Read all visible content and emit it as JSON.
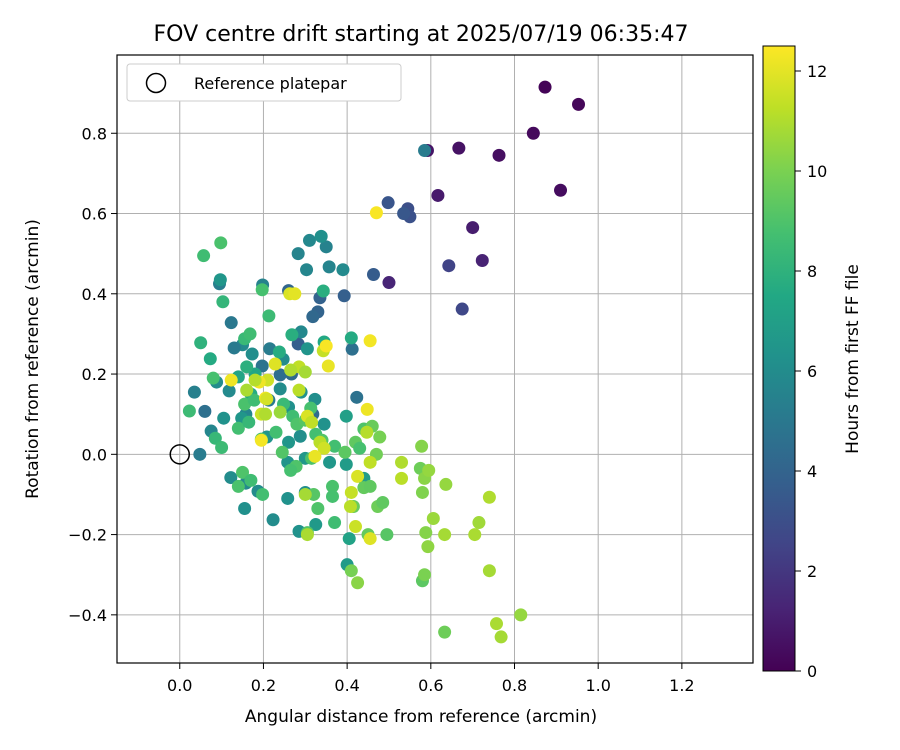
{
  "chart_data": {
    "type": "scatter",
    "title": "FOV centre drift starting at 2025/07/19 06:35:47",
    "xlabel": "Angular distance from reference (arcmin)",
    "ylabel": "Rotation from reference (arcmin)",
    "xlim": [
      -0.15,
      1.37
    ],
    "ylim": [
      -0.52,
      0.995
    ],
    "xticks": [
      "0.0",
      "0.2",
      "0.4",
      "0.6",
      "0.8",
      "1.0",
      "1.2"
    ],
    "xtick_values": [
      0.0,
      0.2,
      0.4,
      0.6,
      0.8,
      1.0,
      1.2
    ],
    "yticks": [
      "−0.4",
      "−0.2",
      "0.0",
      "0.2",
      "0.4",
      "0.6",
      "0.8"
    ],
    "ytick_values": [
      -0.4,
      -0.2,
      0.0,
      0.2,
      0.4,
      0.6,
      0.8
    ],
    "grid": true,
    "legend": {
      "position": "top-left",
      "label": "Reference platepar"
    },
    "reference_point": {
      "x": 0.0,
      "y": 0.0
    },
    "colorbar": {
      "label": "Hours from first FF file",
      "range": [
        0,
        12.5
      ],
      "ticks": [
        "0",
        "2",
        "4",
        "6",
        "8",
        "10",
        "12"
      ],
      "tick_values": [
        0,
        2,
        4,
        6,
        8,
        10,
        12
      ],
      "colormap": "viridis"
    },
    "points": [
      {
        "x": 0.873,
        "y": 0.915,
        "h": 0.1
      },
      {
        "x": 0.953,
        "y": 0.872,
        "h": 0.2
      },
      {
        "x": 0.845,
        "y": 0.8,
        "h": 0.3
      },
      {
        "x": 0.91,
        "y": 0.658,
        "h": 0.4
      },
      {
        "x": 0.763,
        "y": 0.745,
        "h": 0.5
      },
      {
        "x": 0.667,
        "y": 0.763,
        "h": 0.6
      },
      {
        "x": 0.592,
        "y": 0.757,
        "h": 0.7
      },
      {
        "x": 0.617,
        "y": 0.645,
        "h": 0.9
      },
      {
        "x": 0.7,
        "y": 0.565,
        "h": 1.0
      },
      {
        "x": 0.723,
        "y": 0.483,
        "h": 1.2
      },
      {
        "x": 0.5,
        "y": 0.428,
        "h": 1.3
      },
      {
        "x": 0.643,
        "y": 0.47,
        "h": 2.5
      },
      {
        "x": 0.675,
        "y": 0.362,
        "h": 2.7
      },
      {
        "x": 0.545,
        "y": 0.612,
        "h": 3.0
      },
      {
        "x": 0.55,
        "y": 0.592,
        "h": 3.1
      },
      {
        "x": 0.498,
        "y": 0.627,
        "h": 3.3
      },
      {
        "x": 0.535,
        "y": 0.6,
        "h": 3.4
      },
      {
        "x": 0.463,
        "y": 0.448,
        "h": 3.6
      },
      {
        "x": 0.393,
        "y": 0.395,
        "h": 3.8
      },
      {
        "x": 0.335,
        "y": 0.39,
        "h": 3.9
      },
      {
        "x": 0.33,
        "y": 0.355,
        "h": 4.0
      },
      {
        "x": 0.585,
        "y": 0.757,
        "h": 5.2
      },
      {
        "x": 0.26,
        "y": 0.408,
        "h": 4.1
      },
      {
        "x": 0.283,
        "y": 0.275,
        "h": 3.7
      },
      {
        "x": 0.318,
        "y": 0.343,
        "h": 4.2
      },
      {
        "x": 0.267,
        "y": 0.2,
        "h": 4.3
      },
      {
        "x": 0.24,
        "y": 0.198,
        "h": 4.5
      },
      {
        "x": 0.318,
        "y": 0.1,
        "h": 4.4
      },
      {
        "x": 0.412,
        "y": 0.262,
        "h": 4.6
      },
      {
        "x": 0.423,
        "y": 0.142,
        "h": 4.7
      },
      {
        "x": 0.197,
        "y": 0.22,
        "h": 4.8
      },
      {
        "x": 0.06,
        "y": 0.107,
        "h": 4.6
      },
      {
        "x": 0.048,
        "y": 0.0,
        "h": 5.2
      },
      {
        "x": 0.035,
        "y": 0.155,
        "h": 5.4
      },
      {
        "x": 0.123,
        "y": 0.328,
        "h": 5.0
      },
      {
        "x": 0.095,
        "y": 0.425,
        "h": 5.3
      },
      {
        "x": 0.198,
        "y": 0.422,
        "h": 5.5
      },
      {
        "x": 0.283,
        "y": 0.5,
        "h": 5.6
      },
      {
        "x": 0.31,
        "y": 0.533,
        "h": 5.8
      },
      {
        "x": 0.35,
        "y": 0.517,
        "h": 5.5
      },
      {
        "x": 0.338,
        "y": 0.543,
        "h": 6.2
      },
      {
        "x": 0.303,
        "y": 0.46,
        "h": 5.7
      },
      {
        "x": 0.357,
        "y": 0.467,
        "h": 5.6
      },
      {
        "x": 0.39,
        "y": 0.46,
        "h": 5.9
      },
      {
        "x": 0.097,
        "y": 0.435,
        "h": 6.5
      },
      {
        "x": 0.15,
        "y": 0.273,
        "h": 5.9
      },
      {
        "x": 0.215,
        "y": 0.263,
        "h": 5.2
      },
      {
        "x": 0.173,
        "y": 0.25,
        "h": 6.1
      },
      {
        "x": 0.247,
        "y": 0.237,
        "h": 6.0
      },
      {
        "x": 0.29,
        "y": 0.305,
        "h": 5.8
      },
      {
        "x": 0.305,
        "y": 0.263,
        "h": 6.4
      },
      {
        "x": 0.088,
        "y": 0.18,
        "h": 6.0
      },
      {
        "x": 0.13,
        "y": 0.265,
        "h": 5.1
      },
      {
        "x": 0.118,
        "y": 0.158,
        "h": 5.9
      },
      {
        "x": 0.24,
        "y": 0.163,
        "h": 6.0
      },
      {
        "x": 0.29,
        "y": 0.155,
        "h": 6.3
      },
      {
        "x": 0.213,
        "y": 0.135,
        "h": 5.1
      },
      {
        "x": 0.158,
        "y": 0.1,
        "h": 5.7
      },
      {
        "x": 0.26,
        "y": 0.118,
        "h": 6.2
      },
      {
        "x": 0.323,
        "y": 0.137,
        "h": 6.1
      },
      {
        "x": 0.345,
        "y": 0.075,
        "h": 6.3
      },
      {
        "x": 0.288,
        "y": 0.045,
        "h": 6.1
      },
      {
        "x": 0.26,
        "y": 0.03,
        "h": 6.5
      },
      {
        "x": 0.208,
        "y": 0.043,
        "h": 6.4
      },
      {
        "x": 0.148,
        "y": 0.09,
        "h": 6.5
      },
      {
        "x": 0.105,
        "y": 0.09,
        "h": 6.3
      },
      {
        "x": 0.075,
        "y": 0.058,
        "h": 5.7
      },
      {
        "x": 0.122,
        "y": -0.058,
        "h": 6.0
      },
      {
        "x": 0.158,
        "y": -0.072,
        "h": 5.9
      },
      {
        "x": 0.187,
        "y": -0.092,
        "h": 6.0
      },
      {
        "x": 0.258,
        "y": -0.02,
        "h": 6.4
      },
      {
        "x": 0.3,
        "y": -0.01,
        "h": 6.6
      },
      {
        "x": 0.3,
        "y": -0.095,
        "h": 6.1
      },
      {
        "x": 0.258,
        "y": -0.11,
        "h": 6.3
      },
      {
        "x": 0.223,
        "y": -0.163,
        "h": 6.0
      },
      {
        "x": 0.155,
        "y": -0.135,
        "h": 6.2
      },
      {
        "x": 0.285,
        "y": -0.192,
        "h": 6.3
      },
      {
        "x": 0.325,
        "y": -0.175,
        "h": 6.7
      },
      {
        "x": 0.358,
        "y": -0.02,
        "h": 6.6
      },
      {
        "x": 0.398,
        "y": -0.025,
        "h": 6.8
      },
      {
        "x": 0.44,
        "y": -0.06,
        "h": 6.9
      },
      {
        "x": 0.405,
        "y": -0.21,
        "h": 7.2
      },
      {
        "x": 0.4,
        "y": -0.275,
        "h": 6.8
      },
      {
        "x": 0.398,
        "y": 0.095,
        "h": 7.0
      },
      {
        "x": 0.343,
        "y": 0.407,
        "h": 7.8
      },
      {
        "x": 0.41,
        "y": 0.29,
        "h": 7.6
      },
      {
        "x": 0.345,
        "y": 0.28,
        "h": 7.5
      },
      {
        "x": 0.238,
        "y": 0.255,
        "h": 7.7
      },
      {
        "x": 0.268,
        "y": 0.298,
        "h": 7.8
      },
      {
        "x": 0.18,
        "y": 0.2,
        "h": 7.4
      },
      {
        "x": 0.17,
        "y": 0.15,
        "h": 7.6
      },
      {
        "x": 0.14,
        "y": 0.193,
        "h": 7.3
      },
      {
        "x": 0.16,
        "y": 0.218,
        "h": 7.9
      },
      {
        "x": 0.05,
        "y": 0.278,
        "h": 8.0
      },
      {
        "x": 0.073,
        "y": 0.238,
        "h": 7.6
      },
      {
        "x": 0.103,
        "y": 0.38,
        "h": 8.2
      },
      {
        "x": 0.155,
        "y": 0.288,
        "h": 8.4
      },
      {
        "x": 0.168,
        "y": 0.3,
        "h": 8.6
      },
      {
        "x": 0.213,
        "y": 0.345,
        "h": 8.5
      },
      {
        "x": 0.197,
        "y": 0.41,
        "h": 8.8
      },
      {
        "x": 0.057,
        "y": 0.495,
        "h": 8.6
      },
      {
        "x": 0.098,
        "y": 0.527,
        "h": 8.9
      },
      {
        "x": 0.023,
        "y": 0.108,
        "h": 8.5
      },
      {
        "x": 0.08,
        "y": 0.19,
        "h": 8.8
      },
      {
        "x": 0.085,
        "y": 0.04,
        "h": 8.3
      },
      {
        "x": 0.1,
        "y": 0.017,
        "h": 8.5
      },
      {
        "x": 0.14,
        "y": 0.065,
        "h": 8.7
      },
      {
        "x": 0.165,
        "y": 0.08,
        "h": 8.3
      },
      {
        "x": 0.155,
        "y": 0.125,
        "h": 8.9
      },
      {
        "x": 0.178,
        "y": 0.135,
        "h": 8.6
      },
      {
        "x": 0.195,
        "y": 0.038,
        "h": 8.8
      },
      {
        "x": 0.23,
        "y": 0.055,
        "h": 8.7
      },
      {
        "x": 0.248,
        "y": 0.125,
        "h": 8.4
      },
      {
        "x": 0.27,
        "y": 0.095,
        "h": 8.6
      },
      {
        "x": 0.28,
        "y": 0.075,
        "h": 9.0
      },
      {
        "x": 0.313,
        "y": 0.115,
        "h": 8.8
      },
      {
        "x": 0.3,
        "y": 0.085,
        "h": 9.2
      },
      {
        "x": 0.325,
        "y": 0.05,
        "h": 8.7
      },
      {
        "x": 0.34,
        "y": 0.035,
        "h": 9.1
      },
      {
        "x": 0.315,
        "y": -0.01,
        "h": 8.9
      },
      {
        "x": 0.278,
        "y": -0.03,
        "h": 9.0
      },
      {
        "x": 0.265,
        "y": -0.04,
        "h": 8.8
      },
      {
        "x": 0.245,
        "y": 0.005,
        "h": 9.1
      },
      {
        "x": 0.15,
        "y": -0.045,
        "h": 9.0
      },
      {
        "x": 0.17,
        "y": -0.065,
        "h": 8.6
      },
      {
        "x": 0.198,
        "y": -0.1,
        "h": 8.7
      },
      {
        "x": 0.14,
        "y": -0.08,
        "h": 8.9
      },
      {
        "x": 0.32,
        "y": -0.1,
        "h": 9.2
      },
      {
        "x": 0.365,
        "y": -0.08,
        "h": 8.9
      },
      {
        "x": 0.365,
        "y": -0.105,
        "h": 8.8
      },
      {
        "x": 0.33,
        "y": -0.135,
        "h": 9.0
      },
      {
        "x": 0.37,
        "y": -0.17,
        "h": 8.6
      },
      {
        "x": 0.305,
        "y": -0.195,
        "h": 9.1
      },
      {
        "x": 0.37,
        "y": 0.02,
        "h": 8.7
      },
      {
        "x": 0.395,
        "y": 0.005,
        "h": 9.3
      },
      {
        "x": 0.42,
        "y": 0.03,
        "h": 9.4
      },
      {
        "x": 0.44,
        "y": 0.063,
        "h": 9.0
      },
      {
        "x": 0.43,
        "y": 0.015,
        "h": 8.8
      },
      {
        "x": 0.44,
        "y": -0.083,
        "h": 9.5
      },
      {
        "x": 0.455,
        "y": -0.08,
        "h": 9.4
      },
      {
        "x": 0.478,
        "y": 0.043,
        "h": 9.9
      },
      {
        "x": 0.46,
        "y": 0.07,
        "h": 9.6
      },
      {
        "x": 0.47,
        "y": 0.0,
        "h": 9.8
      },
      {
        "x": 0.473,
        "y": -0.13,
        "h": 9.7
      },
      {
        "x": 0.485,
        "y": -0.12,
        "h": 9.4
      },
      {
        "x": 0.495,
        "y": -0.2,
        "h": 9.2
      },
      {
        "x": 0.45,
        "y": -0.2,
        "h": 9.5
      },
      {
        "x": 0.415,
        "y": -0.13,
        "h": 9.6
      },
      {
        "x": 0.41,
        "y": -0.29,
        "h": 9.9
      },
      {
        "x": 0.425,
        "y": -0.32,
        "h": 10.3
      },
      {
        "x": 0.575,
        "y": -0.035,
        "h": 9.7
      },
      {
        "x": 0.58,
        "y": -0.315,
        "h": 9.3
      },
      {
        "x": 0.585,
        "y": -0.3,
        "h": 10.0
      },
      {
        "x": 0.588,
        "y": -0.195,
        "h": 10.2
      },
      {
        "x": 0.593,
        "y": -0.23,
        "h": 10.4
      },
      {
        "x": 0.58,
        "y": -0.095,
        "h": 10.1
      },
      {
        "x": 0.585,
        "y": -0.06,
        "h": 10.3
      },
      {
        "x": 0.595,
        "y": -0.04,
        "h": 10.5
      },
      {
        "x": 0.578,
        "y": 0.02,
        "h": 10.2
      },
      {
        "x": 0.606,
        "y": -0.16,
        "h": 10.6
      },
      {
        "x": 0.633,
        "y": -0.2,
        "h": 10.8
      },
      {
        "x": 0.636,
        "y": -0.075,
        "h": 10.5
      },
      {
        "x": 0.633,
        "y": -0.443,
        "h": 9.7
      },
      {
        "x": 0.705,
        "y": -0.2,
        "h": 10.9
      },
      {
        "x": 0.715,
        "y": -0.17,
        "h": 10.7
      },
      {
        "x": 0.74,
        "y": -0.29,
        "h": 10.8
      },
      {
        "x": 0.74,
        "y": -0.107,
        "h": 11.0
      },
      {
        "x": 0.757,
        "y": -0.422,
        "h": 10.9
      },
      {
        "x": 0.768,
        "y": -0.455,
        "h": 10.8
      },
      {
        "x": 0.815,
        "y": -0.4,
        "h": 10.5
      },
      {
        "x": 0.53,
        "y": -0.02,
        "h": 11.0
      },
      {
        "x": 0.53,
        "y": -0.06,
        "h": 11.2
      },
      {
        "x": 0.455,
        "y": -0.02,
        "h": 11.3
      },
      {
        "x": 0.447,
        "y": 0.055,
        "h": 11.1
      },
      {
        "x": 0.41,
        "y": -0.095,
        "h": 11.4
      },
      {
        "x": 0.408,
        "y": -0.13,
        "h": 11.2
      },
      {
        "x": 0.42,
        "y": -0.18,
        "h": 11.5
      },
      {
        "x": 0.425,
        "y": -0.055,
        "h": 11.8
      },
      {
        "x": 0.455,
        "y": -0.21,
        "h": 11.9
      },
      {
        "x": 0.448,
        "y": 0.112,
        "h": 12.2
      },
      {
        "x": 0.455,
        "y": 0.283,
        "h": 12.3
      },
      {
        "x": 0.47,
        "y": 0.602,
        "h": 12.4
      },
      {
        "x": 0.263,
        "y": 0.4,
        "h": 11.8
      },
      {
        "x": 0.275,
        "y": 0.4,
        "h": 12.0
      },
      {
        "x": 0.228,
        "y": 0.225,
        "h": 11.9
      },
      {
        "x": 0.285,
        "y": 0.218,
        "h": 11.3
      },
      {
        "x": 0.3,
        "y": 0.205,
        "h": 10.8
      },
      {
        "x": 0.285,
        "y": 0.16,
        "h": 11.2
      },
      {
        "x": 0.265,
        "y": 0.21,
        "h": 11.0
      },
      {
        "x": 0.343,
        "y": 0.258,
        "h": 11.4
      },
      {
        "x": 0.35,
        "y": 0.27,
        "h": 12.4
      },
      {
        "x": 0.355,
        "y": 0.22,
        "h": 12.1
      },
      {
        "x": 0.21,
        "y": 0.185,
        "h": 11.6
      },
      {
        "x": 0.19,
        "y": 0.18,
        "h": 12.2
      },
      {
        "x": 0.18,
        "y": 0.185,
        "h": 11.1
      },
      {
        "x": 0.123,
        "y": 0.185,
        "h": 12.2
      },
      {
        "x": 0.16,
        "y": 0.16,
        "h": 10.9
      },
      {
        "x": 0.205,
        "y": 0.14,
        "h": 12.3
      },
      {
        "x": 0.208,
        "y": 0.138,
        "h": 11.7
      },
      {
        "x": 0.195,
        "y": 0.1,
        "h": 11.5
      },
      {
        "x": 0.205,
        "y": 0.1,
        "h": 11.0
      },
      {
        "x": 0.24,
        "y": 0.105,
        "h": 10.6
      },
      {
        "x": 0.305,
        "y": 0.095,
        "h": 11.8
      },
      {
        "x": 0.315,
        "y": 0.08,
        "h": 11.3
      },
      {
        "x": 0.195,
        "y": 0.035,
        "h": 12.3
      },
      {
        "x": 0.335,
        "y": 0.03,
        "h": 11.2
      },
      {
        "x": 0.345,
        "y": 0.015,
        "h": 11.6
      },
      {
        "x": 0.323,
        "y": -0.005,
        "h": 12.1
      },
      {
        "x": 0.3,
        "y": -0.1,
        "h": 10.8
      },
      {
        "x": 0.305,
        "y": -0.2,
        "h": 10.9
      }
    ]
  }
}
